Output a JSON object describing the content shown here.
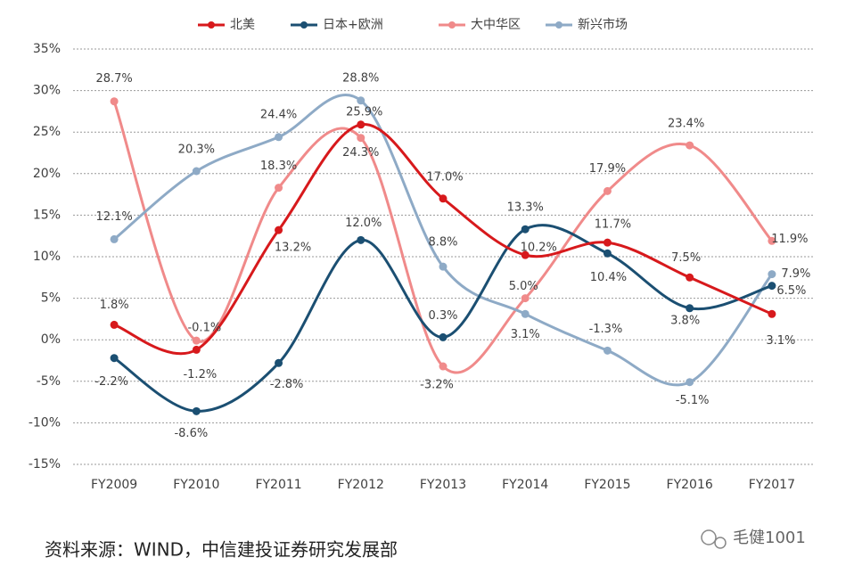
{
  "chart_data": {
    "type": "line",
    "categories": [
      "FY2009",
      "FY2010",
      "FY2011",
      "FY2012",
      "FY2013",
      "FY2014",
      "FY2015",
      "FY2016",
      "FY2017"
    ],
    "series": [
      {
        "name": "北美",
        "color": "#d7191c",
        "values": [
          1.8,
          -1.2,
          13.2,
          25.9,
          17.0,
          10.2,
          11.7,
          7.5,
          3.1
        ],
        "value_labels": [
          "1.8%",
          "-1.2%",
          "13.2%",
          "25.9%",
          "17.0%",
          "10.2%",
          "11.7%",
          "7.5%",
          "3.1%"
        ]
      },
      {
        "name": "日本+欧洲",
        "color": "#1b4f72",
        "values": [
          -2.2,
          -8.6,
          -2.8,
          12.0,
          0.3,
          13.3,
          10.4,
          3.8,
          6.5
        ],
        "value_labels": [
          "-2.2%",
          "-8.6%",
          "-2.8%",
          "12.0%",
          "0.3%",
          "13.3%",
          "10.4%",
          "3.8%",
          "6.5%"
        ]
      },
      {
        "name": "大中华区",
        "color": "#f08a8a",
        "values": [
          28.7,
          -0.1,
          18.3,
          24.3,
          -3.2,
          5.0,
          17.9,
          23.4,
          11.9
        ],
        "value_labels": [
          "28.7%",
          "-0.1%",
          "18.3%",
          "24.3%",
          "-3.2%",
          "5.0%",
          "17.9%",
          "23.4%",
          "11.9%"
        ]
      },
      {
        "name": "新兴市场",
        "color": "#8eaac6",
        "values": [
          12.1,
          20.3,
          24.4,
          28.8,
          8.8,
          3.1,
          -1.3,
          -5.1,
          7.9
        ],
        "value_labels": [
          "12.1%",
          "20.3%",
          "24.4%",
          "28.8%",
          "8.8%",
          "3.1%",
          "-1.3%",
          "-5.1%",
          "7.9%"
        ]
      }
    ],
    "ylim": [
      -15,
      35
    ],
    "yticks": [
      {
        "value": -15,
        "label": "-15%"
      },
      {
        "value": -10,
        "label": "-10%"
      },
      {
        "value": -5,
        "label": "-5%"
      },
      {
        "value": 0,
        "label": "0%"
      },
      {
        "value": 5,
        "label": "5%"
      },
      {
        "value": 10,
        "label": "10%"
      },
      {
        "value": 15,
        "label": "15%"
      },
      {
        "value": 20,
        "label": "20%"
      },
      {
        "value": 25,
        "label": "25%"
      },
      {
        "value": 30,
        "label": "30%"
      },
      {
        "value": 35,
        "label": "35%"
      }
    ],
    "grid": true,
    "legend": "top",
    "smooth": true
  },
  "source": "资料来源：WIND，中信建投证券研究发展部",
  "watermark": "毛健1001"
}
